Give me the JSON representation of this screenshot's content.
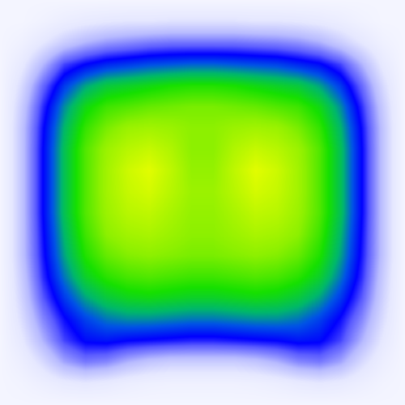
{
  "chart_data": {
    "type": "heatmap",
    "title": "",
    "xlabel": "",
    "ylabel": "",
    "grid": false,
    "legend": "none",
    "background_color": "#f4f5ff",
    "colormap": [
      {
        "value": 0.0,
        "color": "#f4f5ff"
      },
      {
        "value": 0.12,
        "color": "#e6e8ff"
      },
      {
        "value": 0.25,
        "color": "#b8bbff"
      },
      {
        "value": 0.38,
        "color": "#5b5cff"
      },
      {
        "value": 0.46,
        "color": "#0000ff"
      },
      {
        "value": 0.55,
        "color": "#0053e6"
      },
      {
        "value": 0.64,
        "color": "#00b86a"
      },
      {
        "value": 0.74,
        "color": "#16e000"
      },
      {
        "value": 0.86,
        "color": "#8df000"
      },
      {
        "value": 1.0,
        "color": "#f0ff00"
      }
    ],
    "x": [
      0,
      1,
      2,
      3,
      4,
      5,
      6,
      7,
      8,
      9,
      10,
      11,
      12,
      13,
      14,
      15,
      16,
      17,
      18,
      19
    ],
    "y": [
      0,
      1,
      2,
      3,
      4,
      5,
      6,
      7,
      8,
      9,
      10,
      11,
      12,
      13,
      14,
      15,
      16,
      17,
      18,
      19
    ],
    "z": [
      [
        0.0,
        0.0,
        0.0,
        0.0,
        0.0,
        0.0,
        0.0,
        0.0,
        0.0,
        0.0,
        0.0,
        0.0,
        0.0,
        0.0,
        0.0,
        0.0,
        0.0,
        0.0,
        0.0,
        0.0
      ],
      [
        0.0,
        0.0,
        0.03,
        0.07,
        0.1,
        0.12,
        0.13,
        0.13,
        0.14,
        0.14,
        0.14,
        0.14,
        0.13,
        0.13,
        0.12,
        0.1,
        0.07,
        0.03,
        0.0,
        0.0
      ],
      [
        0.0,
        0.04,
        0.12,
        0.2,
        0.26,
        0.3,
        0.32,
        0.34,
        0.35,
        0.35,
        0.35,
        0.35,
        0.34,
        0.33,
        0.31,
        0.27,
        0.2,
        0.12,
        0.04,
        0.0
      ],
      [
        0.0,
        0.1,
        0.25,
        0.4,
        0.46,
        0.5,
        0.52,
        0.54,
        0.55,
        0.56,
        0.56,
        0.55,
        0.54,
        0.53,
        0.5,
        0.47,
        0.4,
        0.26,
        0.1,
        0.0
      ],
      [
        0.0,
        0.16,
        0.36,
        0.52,
        0.62,
        0.68,
        0.7,
        0.72,
        0.74,
        0.75,
        0.75,
        0.74,
        0.72,
        0.7,
        0.68,
        0.62,
        0.52,
        0.36,
        0.16,
        0.0
      ],
      [
        0.0,
        0.2,
        0.42,
        0.6,
        0.72,
        0.78,
        0.8,
        0.82,
        0.83,
        0.84,
        0.84,
        0.83,
        0.82,
        0.8,
        0.78,
        0.72,
        0.6,
        0.42,
        0.2,
        0.0
      ],
      [
        0.0,
        0.22,
        0.45,
        0.64,
        0.77,
        0.84,
        0.88,
        0.89,
        0.88,
        0.86,
        0.86,
        0.88,
        0.89,
        0.88,
        0.84,
        0.77,
        0.64,
        0.45,
        0.22,
        0.0
      ],
      [
        0.0,
        0.22,
        0.46,
        0.66,
        0.8,
        0.88,
        0.92,
        0.94,
        0.91,
        0.86,
        0.86,
        0.91,
        0.94,
        0.92,
        0.88,
        0.8,
        0.66,
        0.46,
        0.22,
        0.0
      ],
      [
        0.0,
        0.22,
        0.46,
        0.66,
        0.8,
        0.89,
        0.95,
        0.98,
        0.93,
        0.87,
        0.87,
        0.93,
        0.98,
        0.95,
        0.89,
        0.8,
        0.66,
        0.46,
        0.22,
        0.0
      ],
      [
        0.0,
        0.22,
        0.46,
        0.66,
        0.8,
        0.89,
        0.94,
        0.96,
        0.92,
        0.88,
        0.88,
        0.92,
        0.96,
        0.94,
        0.89,
        0.8,
        0.66,
        0.46,
        0.22,
        0.0
      ],
      [
        0.0,
        0.22,
        0.46,
        0.66,
        0.8,
        0.88,
        0.92,
        0.93,
        0.9,
        0.87,
        0.87,
        0.9,
        0.93,
        0.92,
        0.88,
        0.8,
        0.66,
        0.46,
        0.22,
        0.0
      ],
      [
        0.0,
        0.22,
        0.45,
        0.64,
        0.78,
        0.86,
        0.89,
        0.9,
        0.88,
        0.86,
        0.86,
        0.88,
        0.9,
        0.89,
        0.86,
        0.78,
        0.64,
        0.45,
        0.22,
        0.0
      ],
      [
        0.0,
        0.22,
        0.44,
        0.62,
        0.75,
        0.82,
        0.85,
        0.86,
        0.85,
        0.84,
        0.84,
        0.85,
        0.86,
        0.85,
        0.82,
        0.75,
        0.62,
        0.44,
        0.22,
        0.0
      ],
      [
        0.0,
        0.2,
        0.42,
        0.58,
        0.7,
        0.76,
        0.79,
        0.8,
        0.79,
        0.78,
        0.78,
        0.79,
        0.8,
        0.79,
        0.76,
        0.7,
        0.58,
        0.42,
        0.2,
        0.0
      ],
      [
        0.0,
        0.18,
        0.38,
        0.52,
        0.62,
        0.68,
        0.71,
        0.72,
        0.71,
        0.7,
        0.7,
        0.71,
        0.72,
        0.71,
        0.68,
        0.62,
        0.52,
        0.38,
        0.18,
        0.0
      ],
      [
        0.0,
        0.15,
        0.32,
        0.45,
        0.53,
        0.58,
        0.6,
        0.6,
        0.59,
        0.58,
        0.58,
        0.59,
        0.6,
        0.6,
        0.58,
        0.53,
        0.45,
        0.32,
        0.15,
        0.0
      ],
      [
        0.0,
        0.11,
        0.26,
        0.4,
        0.47,
        0.48,
        0.46,
        0.45,
        0.44,
        0.43,
        0.43,
        0.44,
        0.45,
        0.46,
        0.48,
        0.47,
        0.4,
        0.26,
        0.11,
        0.0
      ],
      [
        0.0,
        0.06,
        0.16,
        0.28,
        0.34,
        0.32,
        0.26,
        0.22,
        0.2,
        0.2,
        0.2,
        0.2,
        0.22,
        0.26,
        0.32,
        0.34,
        0.28,
        0.16,
        0.06,
        0.0
      ],
      [
        0.0,
        0.02,
        0.06,
        0.1,
        0.12,
        0.1,
        0.07,
        0.05,
        0.04,
        0.04,
        0.04,
        0.04,
        0.05,
        0.07,
        0.1,
        0.12,
        0.1,
        0.06,
        0.02,
        0.0
      ],
      [
        0.0,
        0.0,
        0.0,
        0.0,
        0.0,
        0.0,
        0.0,
        0.0,
        0.0,
        0.0,
        0.0,
        0.0,
        0.0,
        0.0,
        0.0,
        0.0,
        0.0,
        0.0,
        0.0,
        0.0
      ]
    ]
  }
}
